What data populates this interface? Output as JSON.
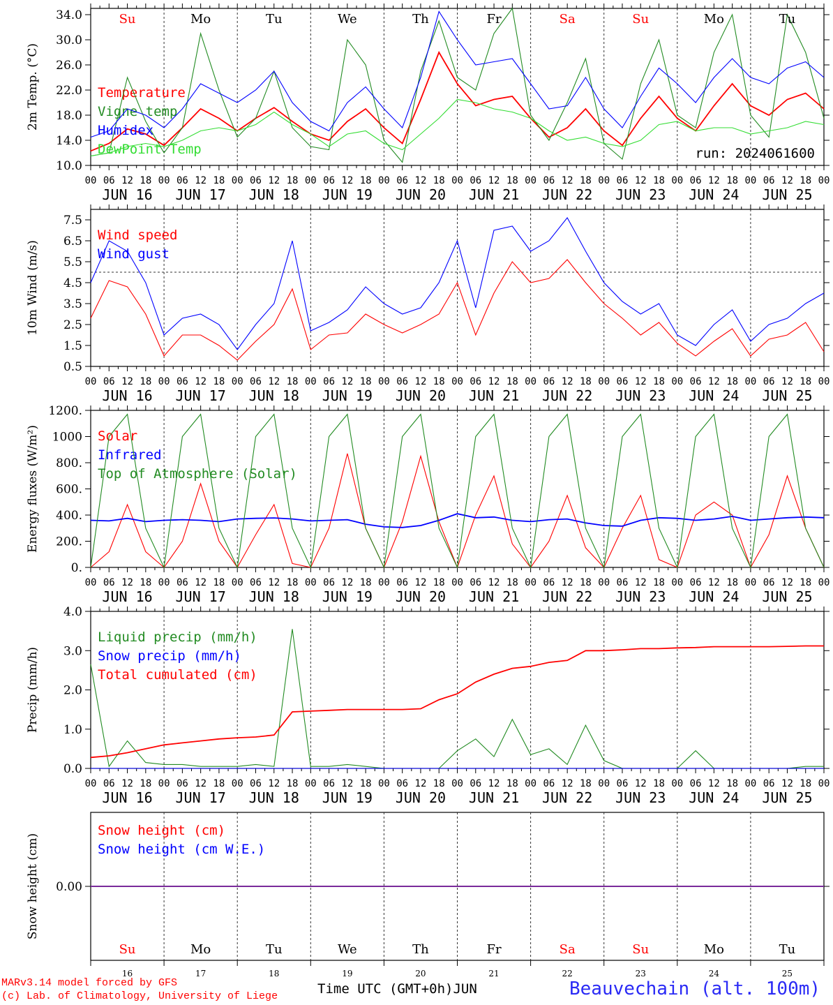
{
  "run_label": "run: 2024061600",
  "week_days": [
    "Su",
    "Mo",
    "Tu",
    "We",
    "Th",
    "Fr",
    "Sa",
    "Su",
    "Mo",
    "Tu"
  ],
  "weekend_color": "#ff0000",
  "date_labels": [
    "JUN 16",
    "JUN 17",
    "JUN 18",
    "JUN 19",
    "JUN 20",
    "JUN 21",
    "JUN 22",
    "JUN 23",
    "JUN 24",
    "JUN 25"
  ],
  "hour_labels": [
    "00",
    "06",
    "12",
    "18"
  ],
  "day_numbers": [
    "16",
    "17",
    "18",
    "19",
    "20",
    "21",
    "22",
    "23",
    "24",
    "25"
  ],
  "footer": {
    "credit_line1": "MARv3.14 model forced by GFS",
    "credit_line2": "(c) Lab. of Climatology, University of Liege",
    "time_axis": "Time UTC (GMT+0h)",
    "month": "JUN",
    "station": "Beauvechain (alt. 100m)"
  },
  "chart_data": [
    {
      "type": "line",
      "ylabel": "2m Temp. (°C)",
      "ylim": [
        10,
        35
      ],
      "ytick_values": [
        10,
        14,
        18,
        22,
        26,
        30,
        34
      ],
      "ytick_labels": [
        "10.0",
        "14.0",
        "18.0",
        "22.0",
        "26.0",
        "30.0",
        "34.0"
      ],
      "x_hours": [
        0,
        6,
        12,
        18,
        24,
        30,
        36,
        42,
        48,
        54,
        60,
        66,
        72,
        78,
        84,
        90,
        96,
        102,
        108,
        114,
        120,
        126,
        132,
        138,
        144,
        150,
        156,
        162,
        168,
        174,
        180,
        186,
        192,
        198,
        204,
        210,
        216,
        222,
        228,
        234,
        240
      ],
      "series": [
        {
          "name": "Temperature",
          "color": "#ff0000",
          "values": [
            12.3,
            13.5,
            15.8,
            15.0,
            13.2,
            16.0,
            19.0,
            17.5,
            15.5,
            17.5,
            19.2,
            17.0,
            15.0,
            14.0,
            17.0,
            19.0,
            16.0,
            13.5,
            20.5,
            28.0,
            23.0,
            19.5,
            20.5,
            21.0,
            17.5,
            14.5,
            16.0,
            19.0,
            15.5,
            13.2,
            17.5,
            21.0,
            17.5,
            15.5,
            19.5,
            23.0,
            19.5,
            18.0,
            20.5,
            21.5,
            19.0
          ]
        },
        {
          "name": "Vigne temp",
          "color": "#228b22",
          "values": [
            11.5,
            12.0,
            24.0,
            17.0,
            12.0,
            16.0,
            31.0,
            22.0,
            14.5,
            17.5,
            25.0,
            16.0,
            13.0,
            12.5,
            30.0,
            26.0,
            14.0,
            10.5,
            25.0,
            33.0,
            24.0,
            22.0,
            31.0,
            35.0,
            18.0,
            14.0,
            20.0,
            27.0,
            13.5,
            11.0,
            23.0,
            30.0,
            18.0,
            16.0,
            28.0,
            34.0,
            18.0,
            14.5,
            34.0,
            28.0,
            17.5
          ]
        },
        {
          "name": "Humidex",
          "color": "#0000ff",
          "values": [
            14.5,
            15.5,
            19.0,
            18.0,
            16.0,
            19.0,
            23.0,
            21.5,
            20.0,
            22.0,
            25.0,
            20.0,
            17.0,
            15.5,
            20.0,
            22.5,
            19.0,
            16.0,
            24.0,
            34.5,
            30.0,
            26.0,
            26.5,
            27.0,
            23.0,
            19.0,
            19.5,
            24.0,
            19.0,
            16.0,
            21.0,
            25.5,
            23.0,
            20.0,
            24.0,
            27.0,
            24.0,
            23.0,
            25.5,
            26.5,
            24.0
          ]
        },
        {
          "name": "DewPoint Temp",
          "color": "#33dd33",
          "values": [
            11.5,
            12.0,
            13.0,
            13.5,
            13.0,
            14.0,
            15.5,
            16.0,
            15.5,
            16.5,
            18.5,
            16.5,
            15.0,
            13.0,
            15.0,
            15.5,
            13.5,
            12.5,
            15.0,
            17.5,
            20.5,
            20.0,
            19.0,
            18.5,
            17.5,
            15.5,
            14.0,
            14.5,
            13.5,
            13.0,
            14.0,
            16.5,
            17.0,
            15.5,
            16.0,
            16.0,
            15.0,
            15.5,
            16.0,
            17.0,
            16.5
          ]
        }
      ]
    },
    {
      "type": "line",
      "ylabel": "10m Wind (m/s)",
      "ylim": [
        0.5,
        8
      ],
      "ytick_values": [
        0.5,
        1.5,
        2.5,
        3.5,
        4.5,
        5.5,
        6.5,
        7.5
      ],
      "ytick_labels": [
        "0.5",
        "1.5",
        "2.5",
        "3.5",
        "4.5",
        "5.5",
        "6.5",
        "7.5"
      ],
      "reference_line": 5.0,
      "x_hours": [
        0,
        6,
        12,
        18,
        24,
        30,
        36,
        42,
        48,
        54,
        60,
        66,
        72,
        78,
        84,
        90,
        96,
        102,
        108,
        114,
        120,
        126,
        132,
        138,
        144,
        150,
        156,
        162,
        168,
        174,
        180,
        186,
        192,
        198,
        204,
        210,
        216,
        222,
        228,
        234,
        240
      ],
      "series": [
        {
          "name": "Wind speed",
          "color": "#ff0000",
          "values": [
            2.8,
            4.6,
            4.3,
            3.0,
            1.0,
            2.0,
            2.0,
            1.5,
            0.8,
            1.7,
            2.5,
            4.2,
            1.3,
            2.0,
            2.1,
            3.0,
            2.5,
            2.1,
            2.5,
            3.0,
            4.5,
            2.0,
            4.0,
            5.5,
            4.5,
            4.7,
            5.6,
            4.5,
            3.5,
            2.8,
            2.0,
            2.6,
            1.6,
            1.0,
            1.7,
            2.3,
            1.0,
            1.8,
            2.0,
            2.6,
            1.2
          ]
        },
        {
          "name": "Wind gust",
          "color": "#0000ff",
          "values": [
            4.5,
            6.5,
            6.0,
            4.5,
            2.0,
            2.8,
            3.0,
            2.5,
            1.3,
            2.5,
            3.5,
            6.5,
            2.2,
            2.6,
            3.2,
            4.3,
            3.5,
            3.0,
            3.3,
            4.5,
            6.5,
            3.3,
            7.0,
            7.2,
            6.0,
            6.5,
            7.6,
            6.0,
            4.5,
            3.6,
            3.0,
            3.5,
            2.0,
            1.5,
            2.5,
            3.2,
            1.7,
            2.5,
            2.8,
            3.5,
            4.0
          ]
        }
      ]
    },
    {
      "type": "line",
      "ylabel": "Energy fluxes (W/m²)",
      "ylim": [
        0,
        1200
      ],
      "ytick_values": [
        0,
        200,
        400,
        600,
        800,
        1000,
        1200
      ],
      "ytick_labels": [
        "0.",
        "200.",
        "400.",
        "600.",
        "800.",
        "1000",
        "1200."
      ],
      "x_hours": [
        0,
        6,
        12,
        18,
        24,
        30,
        36,
        42,
        48,
        54,
        60,
        66,
        72,
        78,
        84,
        90,
        96,
        102,
        108,
        114,
        120,
        126,
        132,
        138,
        144,
        150,
        156,
        162,
        168,
        174,
        180,
        186,
        192,
        198,
        204,
        210,
        216,
        222,
        228,
        234,
        240
      ],
      "series": [
        {
          "name": "Solar",
          "color": "#ff0000",
          "values": [
            0,
            120,
            480,
            120,
            0,
            200,
            640,
            200,
            0,
            250,
            480,
            30,
            0,
            300,
            870,
            300,
            0,
            350,
            850,
            350,
            0,
            400,
            700,
            180,
            0,
            200,
            550,
            150,
            0,
            300,
            550,
            60,
            0,
            400,
            500,
            400,
            0,
            250,
            700,
            300,
            0
          ]
        },
        {
          "name": "Infrared",
          "color": "#0000ff",
          "values": [
            360,
            355,
            375,
            350,
            360,
            365,
            360,
            350,
            370,
            375,
            378,
            370,
            355,
            360,
            365,
            330,
            310,
            305,
            320,
            360,
            410,
            380,
            385,
            360,
            350,
            365,
            370,
            340,
            320,
            315,
            360,
            380,
            375,
            360,
            370,
            390,
            360,
            370,
            380,
            385,
            380
          ]
        },
        {
          "name": "Top of Atmosphere (Solar)",
          "color": "#228b22",
          "values": [
            0,
            1000,
            1170,
            300,
            0,
            1000,
            1170,
            300,
            0,
            1000,
            1170,
            300,
            0,
            1000,
            1170,
            300,
            0,
            1000,
            1170,
            300,
            0,
            1000,
            1170,
            300,
            0,
            1000,
            1170,
            300,
            0,
            1000,
            1170,
            300,
            0,
            1000,
            1170,
            300,
            0,
            1000,
            1170,
            300,
            0
          ]
        }
      ]
    },
    {
      "type": "line",
      "ylabel": "Precip (mm/h)",
      "ylim": [
        0,
        4
      ],
      "ytick_values": [
        0,
        1,
        2,
        3,
        4
      ],
      "ytick_labels": [
        "0.0",
        "1.0",
        "2.0",
        "3.0",
        "4.0"
      ],
      "x_hours": [
        0,
        6,
        12,
        18,
        24,
        30,
        36,
        42,
        48,
        54,
        60,
        66,
        72,
        78,
        84,
        90,
        96,
        102,
        108,
        114,
        120,
        126,
        132,
        138,
        144,
        150,
        156,
        162,
        168,
        174,
        180,
        186,
        192,
        198,
        204,
        210,
        216,
        222,
        228,
        234,
        240
      ],
      "series": [
        {
          "name": "Liquid precip (mm/h)",
          "color": "#228b22",
          "values": [
            2.65,
            0.05,
            0.7,
            0.15,
            0.1,
            0.1,
            0.05,
            0.05,
            0.05,
            0.1,
            0.05,
            3.55,
            0.05,
            0.05,
            0.1,
            0.05,
            0.0,
            0.0,
            0.0,
            0.0,
            0.45,
            0.75,
            0.3,
            1.25,
            0.35,
            0.5,
            0.1,
            1.1,
            0.2,
            0.0,
            0.0,
            0.0,
            0.0,
            0.45,
            0.0,
            0.0,
            0.0,
            0.0,
            0.0,
            0.05,
            0.05
          ]
        },
        {
          "name": "Snow precip (mm/h)",
          "color": "#0000ff",
          "values": [
            0,
            0,
            0,
            0,
            0,
            0,
            0,
            0,
            0,
            0,
            0,
            0,
            0,
            0,
            0,
            0,
            0,
            0,
            0,
            0,
            0,
            0,
            0,
            0,
            0,
            0,
            0,
            0,
            0,
            0,
            0,
            0,
            0,
            0,
            0,
            0,
            0,
            0,
            0,
            0,
            0
          ]
        },
        {
          "name": "Total cumulated (cm)",
          "color": "#ff0000",
          "values": [
            0.28,
            0.32,
            0.4,
            0.5,
            0.6,
            0.65,
            0.7,
            0.75,
            0.78,
            0.8,
            0.85,
            1.44,
            1.46,
            1.48,
            1.5,
            1.5,
            1.5,
            1.5,
            1.52,
            1.75,
            1.9,
            2.2,
            2.4,
            2.55,
            2.6,
            2.7,
            2.75,
            3.0,
            3.0,
            3.02,
            3.05,
            3.05,
            3.07,
            3.08,
            3.1,
            3.1,
            3.1,
            3.1,
            3.11,
            3.12,
            3.12
          ]
        }
      ]
    },
    {
      "type": "line",
      "ylabel": "Snow height (cm)",
      "ylim": [
        -1,
        1
      ],
      "ytick_values": [
        0
      ],
      "ytick_labels": [
        "0.00"
      ],
      "x_hours": [
        0,
        240
      ],
      "series": [
        {
          "name": "Snow height (cm)",
          "color": "#ff0000",
          "values": [
            0,
            0
          ]
        },
        {
          "name": "Snow height (cm W.E.)",
          "color": "#0000ff",
          "values": [
            0,
            0
          ]
        }
      ]
    }
  ]
}
